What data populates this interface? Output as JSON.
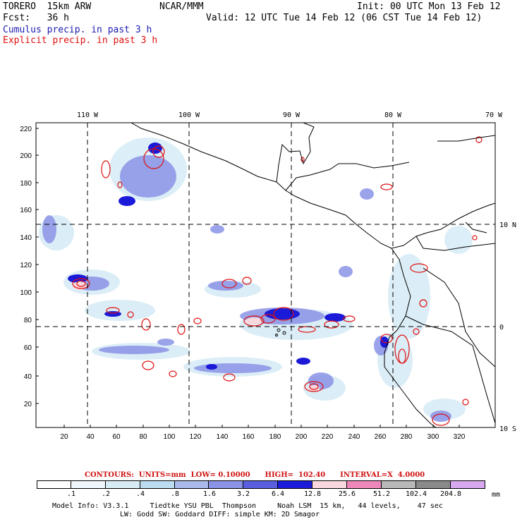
{
  "header": {
    "line1_left": "TORERO  15km ARW",
    "line1_mid": "NCAR/MMM",
    "line1_right": "Init: 00 UTC Mon 13 Feb 12",
    "line2_left": "Fcst:   36 h",
    "line2_right": "Valid: 12 UTC Tue 14 Feb 12 (06 CST Tue 14 Feb 12)",
    "line3": "Cumulus precip. in past 3 h",
    "line4": "Explicit precip. in past 3 h"
  },
  "map": {
    "x_ticks": [
      "20",
      "40",
      "60",
      "80",
      "100",
      "120",
      "140",
      "160",
      "180",
      "200",
      "220",
      "240",
      "260",
      "280",
      "300",
      "320"
    ],
    "y_ticks": [
      "220",
      "200",
      "180",
      "160",
      "140",
      "120",
      "100",
      "80",
      "60",
      "40",
      "20"
    ],
    "lon_labels": [
      "110 W",
      "100 W",
      "90 W",
      "80 W",
      "70 W"
    ],
    "lat_labels": [
      "10 N",
      "0",
      "10 S"
    ]
  },
  "legend": {
    "contours_text": "CONTOURS:  UNITS=mm  LOW= 0.10000      HIGH=  102.40      INTERVAL=X  4.0000",
    "colors": [
      "#ffffff",
      "#eef6fb",
      "#d8ecf6",
      "#bcdcef",
      "#a9b9ec",
      "#8a93e6",
      "#5a5fe0",
      "#1a1ad8",
      "#f8d8dc",
      "#ef88ba",
      "#b8b8b8",
      "#8a8a8a",
      "#d8a8ee"
    ],
    "tick_labels": [
      ".1",
      ".2",
      ".4",
      ".8",
      "1.6",
      "3.2",
      "6.4",
      "12.8",
      "25.6",
      "51.2",
      "102.4",
      "204.8"
    ],
    "unit": "mm"
  },
  "footer": {
    "line1": "Model Info: V3.3.1     Tiedtke YSU PBL  Thompson     Noah LSM  15 km,   44 levels,    47 sec",
    "line2": "LW: Godd SW: Goddard DIFF: simple KM: 2D Smagor"
  },
  "colors": {
    "cumulus": "#1b1bb0",
    "explicit": "#e01010"
  }
}
